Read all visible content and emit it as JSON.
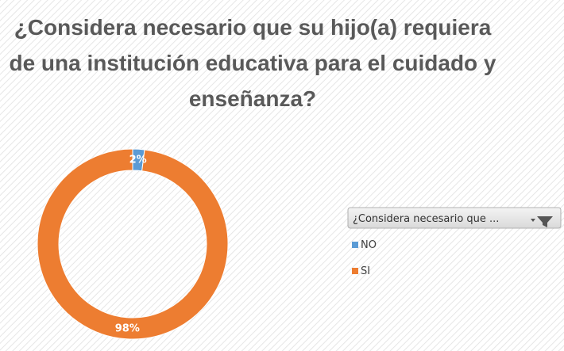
{
  "chart_data": {
    "type": "donut",
    "title": "¿Considera necesario que su hijo(a) requiera de una institución educativa para el cuidado y enseñanza?",
    "legend_title": "¿Considera necesario que ...",
    "categories": [
      "NO",
      "SI"
    ],
    "values": [
      2,
      98
    ],
    "value_labels": [
      "2%",
      "98%"
    ],
    "colors": [
      "#5b9bd5",
      "#ed7d31"
    ],
    "legend": "right"
  }
}
